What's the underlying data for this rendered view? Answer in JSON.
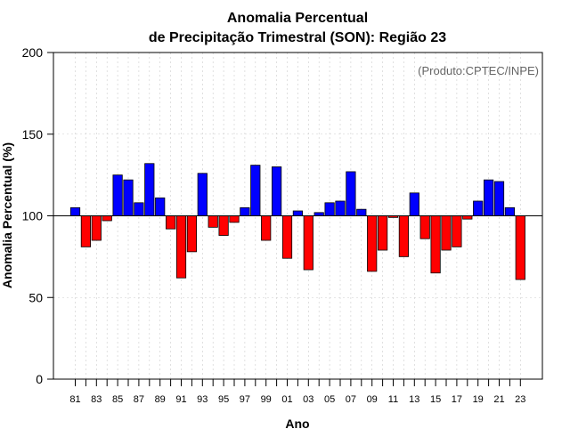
{
  "chart_data": {
    "type": "bar",
    "title_line1": "Anomalia Percentual",
    "title_line2": "de Precipitação Trimestral (SON): Região 23",
    "xlabel": "Ano",
    "ylabel": "Anomalia Percentual (%)",
    "source_note": "(Produto:CPTEC/INPE)",
    "ylim": [
      0,
      200
    ],
    "yticks": [
      0,
      50,
      100,
      150,
      200
    ],
    "baseline": 100,
    "grid": true,
    "colors": {
      "above": "#0000ff",
      "below": "#ff0000",
      "outline": "#000000",
      "baseline": "#000000"
    },
    "categories": [
      "81",
      "82",
      "83",
      "84",
      "85",
      "86",
      "87",
      "88",
      "89",
      "90",
      "91",
      "92",
      "93",
      "94",
      "95",
      "96",
      "97",
      "98",
      "99",
      "00",
      "01",
      "02",
      "03",
      "04",
      "05",
      "06",
      "07",
      "08",
      "09",
      "10",
      "11",
      "12",
      "13",
      "14",
      "15",
      "16",
      "17",
      "18",
      "19",
      "20",
      "21",
      "22",
      "23"
    ],
    "values": [
      105,
      81,
      85,
      97,
      125,
      122,
      108,
      132,
      111,
      92,
      62,
      78,
      126,
      93,
      88,
      96,
      105,
      131,
      85,
      130,
      74,
      103,
      67,
      102,
      108,
      109,
      127,
      104,
      66,
      79,
      99,
      75,
      114,
      86,
      65,
      79,
      81,
      98,
      109,
      122,
      121,
      105,
      61
    ],
    "xtick_labels": [
      "81",
      "83",
      "85",
      "87",
      "89",
      "91",
      "93",
      "95",
      "97",
      "99",
      "01",
      "03",
      "05",
      "07",
      "09",
      "11",
      "13",
      "15",
      "17",
      "19",
      "21",
      "23"
    ]
  }
}
